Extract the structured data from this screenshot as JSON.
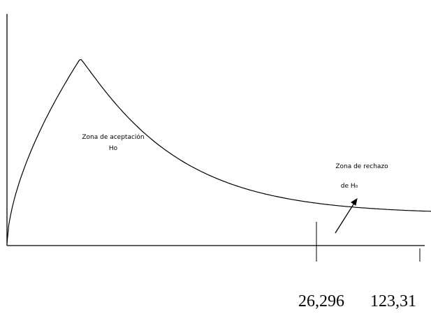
{
  "chart_data": {
    "type": "line",
    "title": "",
    "xlabel": "",
    "ylabel": "",
    "distribution": "chi-square-like density",
    "tick_labels": [
      "26,296",
      "123,31"
    ],
    "annotations": {
      "acceptance_line1": "Zona de aceptación",
      "acceptance_line2": "Ho",
      "rejection_line1": "Zona de rechazo",
      "rejection_line2": "de H₀"
    },
    "grid": false,
    "legend": "none",
    "colors": {
      "curve": "#000000",
      "text": "#000000"
    }
  }
}
